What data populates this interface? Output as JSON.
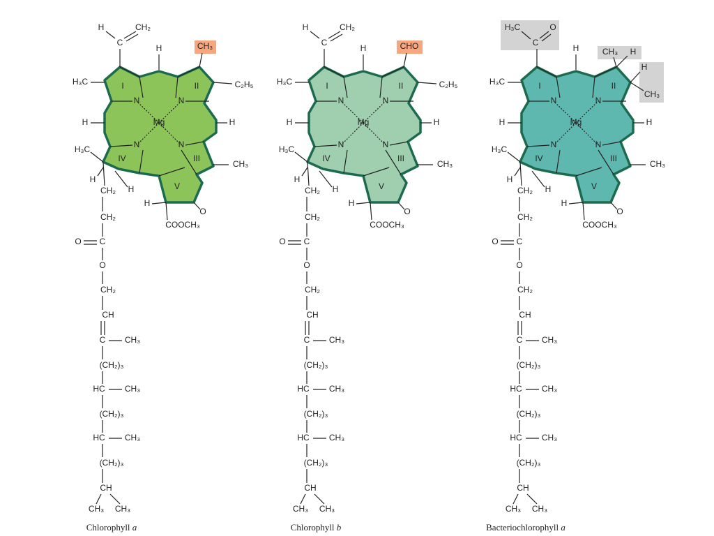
{
  "molecules": [
    {
      "name": "Chlorophyll",
      "variant": "a",
      "core": [
        "H",
        "H₃C",
        "I",
        "II",
        "N",
        "N",
        "Mg",
        "H",
        "H",
        "H₃C",
        "N",
        "N",
        "IV",
        "III",
        "CH₃",
        "H",
        "CH₂",
        "H",
        "V",
        "H",
        "O",
        "COOCH₃",
        "CH₂",
        "O",
        "C",
        "O",
        "CH₂",
        "CH",
        "C",
        "CH₃",
        "(CH₂)₃",
        "HC",
        "CH₃",
        "(CH₂)₃",
        "HC",
        "CH₃",
        "(CH₂)₃",
        "CH",
        "CH₃",
        "CH₃"
      ],
      "substituents": [
        "H",
        "CH₂",
        "C",
        "CH₃",
        "C₂H₅"
      ]
    },
    {
      "name": "Chlorophyll",
      "variant": "b",
      "core": [
        "H",
        "H₃C",
        "I",
        "II",
        "N",
        "N",
        "Mg",
        "H",
        "H",
        "H₃C",
        "N",
        "N",
        "IV",
        "III",
        "CH₃",
        "H",
        "CH₂",
        "H",
        "V",
        "H",
        "O",
        "COOCH₃",
        "CH₂",
        "O",
        "C",
        "O",
        "CH₂",
        "CH",
        "C",
        "CH₃",
        "(CH₂)₃",
        "HC",
        "CH₃",
        "(CH₂)₃",
        "HC",
        "CH₃",
        "(CH₂)₃",
        "CH",
        "CH₃",
        "CH₃"
      ],
      "substituents": [
        "H",
        "CH₂",
        "C",
        "CHO",
        "C₂H₅"
      ]
    },
    {
      "name": "Bacteriochlorophyll",
      "variant": "a",
      "core": [
        "H",
        "H₃C",
        "I",
        "II",
        "N",
        "N",
        "Mg",
        "H",
        "H",
        "H₃C",
        "N",
        "N",
        "IV",
        "III",
        "CH₃",
        "H",
        "CH₂",
        "H",
        "V",
        "H",
        "O",
        "COOCH₃",
        "CH₂",
        "O",
        "C",
        "O",
        "CH₂",
        "CH",
        "C",
        "CH₃",
        "(CH₂)₃",
        "HC",
        "CH₃",
        "(CH₂)₃",
        "HC",
        "CH₃",
        "(CH₂)₃",
        "CH",
        "CH₃",
        "CH₃"
      ],
      "substituents": [
        "H₃C",
        "O",
        "C",
        "CH₃",
        "H",
        "H",
        "CH₃"
      ]
    }
  ]
}
